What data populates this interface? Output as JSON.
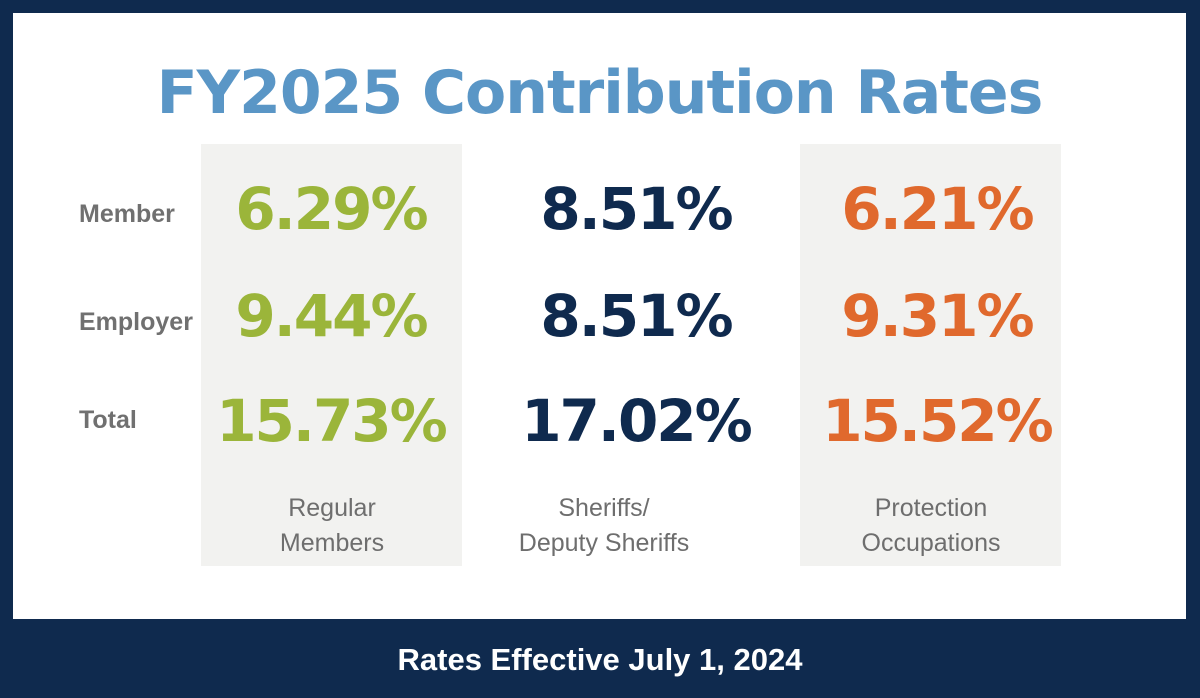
{
  "title": "FY2025 Contribution Rates",
  "row_labels": [
    "Member",
    "Employer",
    "Total"
  ],
  "columns": [
    {
      "caption_line1": "Regular",
      "caption_line2": "Members",
      "member": "6.29%",
      "employer": "9.44%",
      "total": "15.73%",
      "color": "#9bb53a"
    },
    {
      "caption_line1": "Sheriffs/",
      "caption_line2": "Deputy Sheriffs",
      "member": "8.51%",
      "employer": "8.51%",
      "total": "17.02%",
      "color": "#0f2a4e"
    },
    {
      "caption_line1": "Protection",
      "caption_line2": "Occupations",
      "member": "6.21%",
      "employer": "9.31%",
      "total": "15.52%",
      "color": "#e0692d"
    }
  ],
  "footer": "Rates Effective July 1, 2024",
  "colors": {
    "background": "#0f2a4e",
    "title": "#5a96c6",
    "panel": "#ffffff",
    "column_shade": "#f2f2f0",
    "label": "#707070"
  }
}
